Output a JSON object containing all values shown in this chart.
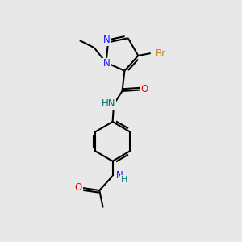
{
  "bg_color": "#e8e8e8",
  "colors": {
    "N": "#1414ff",
    "O": "#ff0000",
    "Br": "#cc7722",
    "NH": "#007070",
    "C": "#000000"
  },
  "font_size": 8.5,
  "lw": 1.5
}
